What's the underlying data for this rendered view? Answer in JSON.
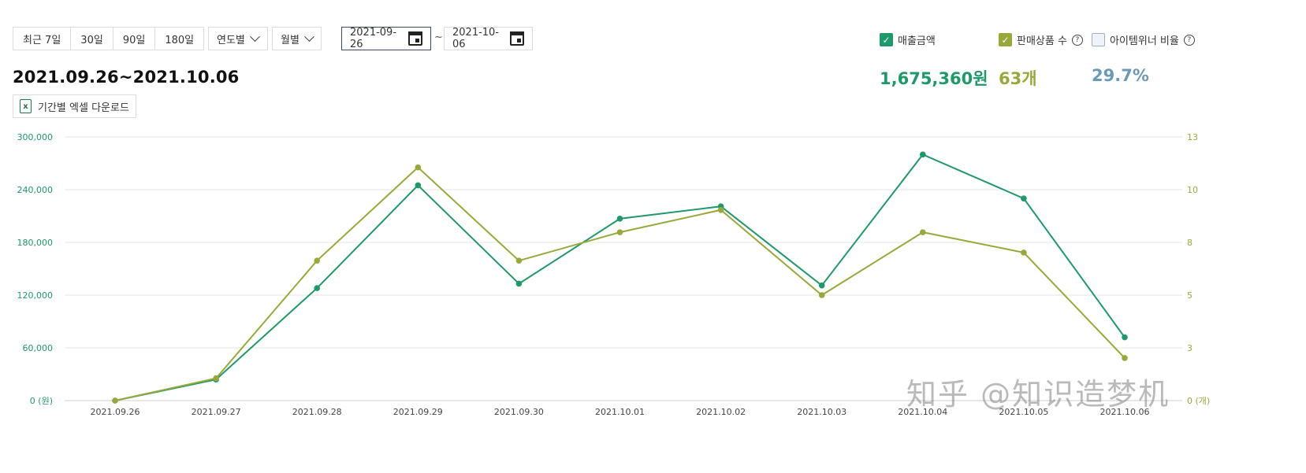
{
  "toolbar": {
    "period_buttons": [
      "최근 7일",
      "30일",
      "90일",
      "180일"
    ],
    "year_select": "연도별",
    "month_select": "월별",
    "start_date": "2021-09-26",
    "end_date": "2021-10-06",
    "tilde": "~"
  },
  "title": "2021.09.26~2021.10.06",
  "download_label": "기간별 엑셀 다운로드",
  "legend": {
    "sales": {
      "label": "매출금액",
      "checked": true,
      "color": "#1e9a6a"
    },
    "items": {
      "label": "판매상품 수",
      "checked": true,
      "color": "#9aa83a"
    },
    "winner": {
      "label": "아이템위너 비율",
      "checked": false,
      "color": "#6a9ab8"
    }
  },
  "kpis": {
    "sales_total": "1,675,360원",
    "items_total": "63개",
    "winner_ratio": "29.7%"
  },
  "watermark": "知乎 @知识造梦机",
  "chart_data": {
    "type": "line",
    "categories": [
      "2021.09.26",
      "2021.09.27",
      "2021.09.28",
      "2021.09.29",
      "2021.09.30",
      "2021.10.01",
      "2021.10.02",
      "2021.10.03",
      "2021.10.04",
      "2021.10.05",
      "2021.10.06"
    ],
    "y_left": {
      "ticks": [
        "0 (원)",
        "60,000",
        "120,000",
        "180,000",
        "240,000",
        "300,000"
      ],
      "tick_values": [
        0,
        60000,
        120000,
        180000,
        240000,
        300000
      ],
      "ylim": [
        0,
        300000
      ]
    },
    "y_right": {
      "ticks": [
        "0 (개)",
        "3",
        "5",
        "8",
        "10",
        "13"
      ],
      "tick_values": [
        0,
        2.6,
        5.2,
        7.8,
        10.4,
        13
      ],
      "ylim": [
        0,
        13
      ]
    },
    "series": [
      {
        "name": "매출금액",
        "axis": "left",
        "color": "#1e9a6a",
        "values": [
          0,
          24000,
          128000,
          245000,
          133000,
          207000,
          221000,
          131000,
          280000,
          230000,
          72000
        ]
      },
      {
        "name": "판매상품 수",
        "axis": "right",
        "color": "#9aa83a",
        "values": [
          0,
          1.1,
          6.9,
          11.5,
          6.9,
          8.3,
          9.4,
          5.2,
          8.3,
          7.3,
          2.1
        ]
      }
    ],
    "grid": true,
    "left_axis_color": "#1e9a6a",
    "right_axis_color": "#9aa83a"
  }
}
